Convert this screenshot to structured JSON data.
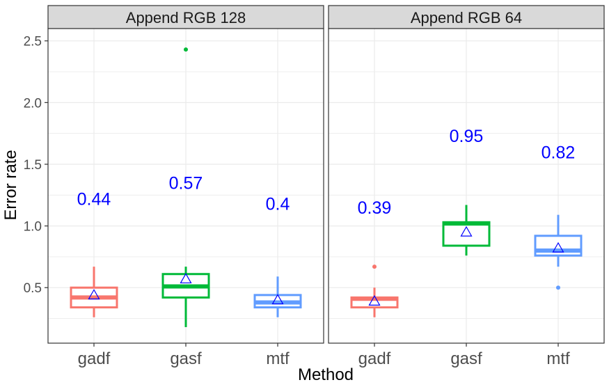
{
  "chart_data": {
    "type": "boxplot",
    "xlabel": "Method",
    "ylabel": "Error rate",
    "ylim": [
      0.05,
      2.6
    ],
    "yticks": [
      "0.5",
      "1.0",
      "1.5",
      "2.0",
      "2.5"
    ],
    "ytick_values": [
      0.5,
      1.0,
      1.5,
      2.0,
      2.5
    ],
    "categories": [
      "gadf",
      "gasf",
      "mtf"
    ],
    "colors": {
      "gadf": "#F8766D",
      "gasf": "#00BA38",
      "mtf": "#619CFF",
      "annotation": "#0000FF",
      "mean_marker": "#0000FF",
      "strip_bg": "#D9D9D9",
      "grid": "#EBEBEB"
    },
    "grid": true,
    "legend": "none",
    "panels": [
      {
        "title": "Append RGB 128",
        "boxes": [
          {
            "method": "gadf",
            "whisker_low": 0.26,
            "q1": 0.34,
            "median": 0.42,
            "q3": 0.5,
            "whisker_high": 0.67,
            "mean": 0.44,
            "outliers": [],
            "label": "0.44",
            "label_y": 1.22
          },
          {
            "method": "gasf",
            "whisker_low": 0.18,
            "q1": 0.42,
            "median": 0.51,
            "q3": 0.61,
            "whisker_high": 0.67,
            "mean": 0.57,
            "outliers": [
              2.43
            ],
            "label": "0.57",
            "label_y": 1.35
          },
          {
            "method": "mtf",
            "whisker_low": 0.26,
            "q1": 0.34,
            "median": 0.38,
            "q3": 0.44,
            "whisker_high": 0.59,
            "mean": 0.4,
            "outliers": [],
            "label": "0.4",
            "label_y": 1.18
          }
        ]
      },
      {
        "title": "Append RGB 64",
        "boxes": [
          {
            "method": "gadf",
            "whisker_low": 0.26,
            "q1": 0.34,
            "median": 0.41,
            "q3": 0.42,
            "whisker_high": 0.5,
            "mean": 0.39,
            "outliers": [
              0.67
            ],
            "label": "0.39",
            "label_y": 1.15
          },
          {
            "method": "gasf",
            "whisker_low": 0.76,
            "q1": 0.84,
            "median": 1.02,
            "q3": 1.03,
            "whisker_high": 1.17,
            "mean": 0.95,
            "outliers": [],
            "label": "0.95",
            "label_y": 1.73
          },
          {
            "method": "mtf",
            "whisker_low": 0.67,
            "q1": 0.76,
            "median": 0.8,
            "q3": 0.92,
            "whisker_high": 1.09,
            "mean": 0.82,
            "outliers": [
              0.5
            ],
            "label": "0.82",
            "label_y": 1.6
          }
        ]
      }
    ]
  }
}
